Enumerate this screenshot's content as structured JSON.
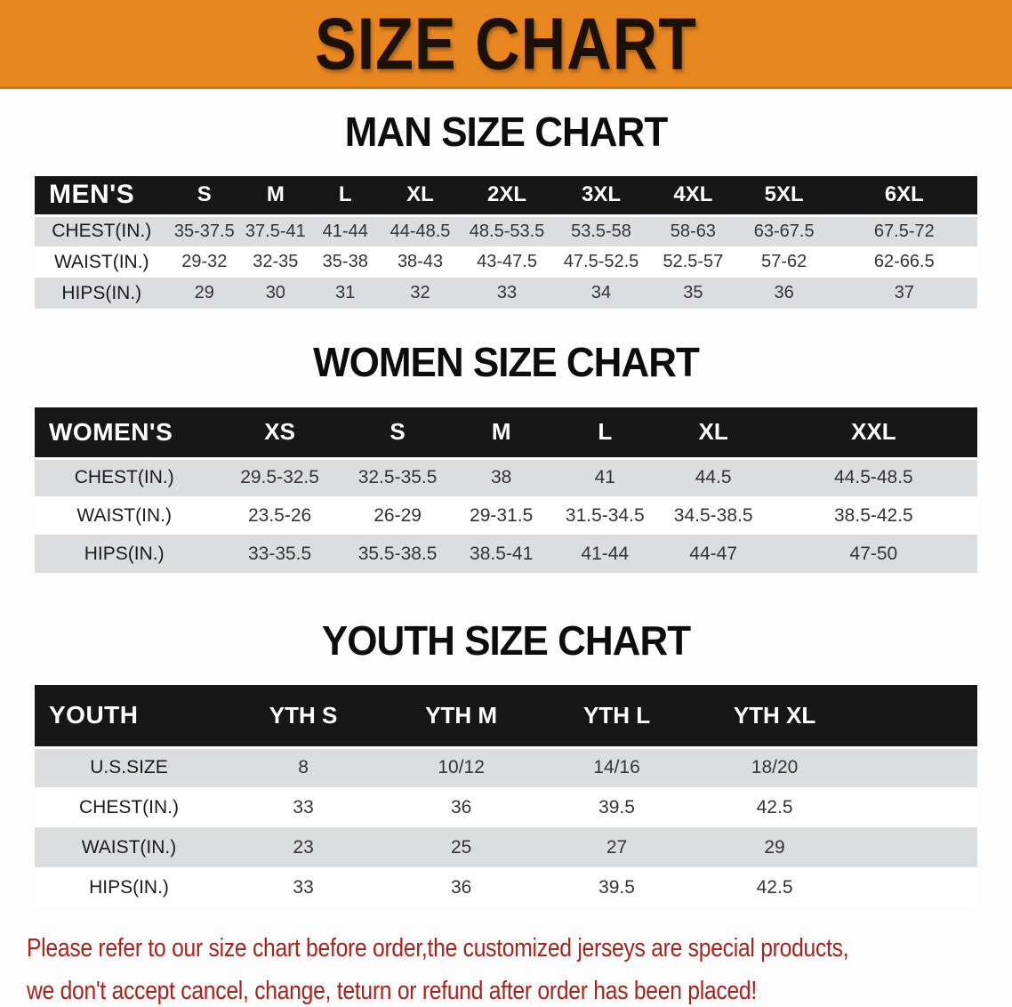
{
  "banner": {
    "title": "SIZE CHART",
    "bg_color": "#e8861f",
    "text_color": "#1c1106"
  },
  "sections": [
    {
      "heading": "MAN SIZE CHART",
      "table": {
        "header": [
          "MEN'S",
          "S",
          "M",
          "L",
          "XL",
          "2XL",
          "3XL",
          "4XL",
          "5XL",
          "6XL"
        ],
        "rows": [
          {
            "label": "CHEST(IN.)",
            "values": [
              "35-37.5",
              "37.5-41",
              "41-44",
              "44-48.5",
              "48.5-53.5",
              "53.5-58",
              "58-63",
              "63-67.5",
              "67.5-72"
            ]
          },
          {
            "label": "WAIST(IN.)",
            "values": [
              "29-32",
              "32-35",
              "35-38",
              "38-43",
              "43-47.5",
              "47.5-52.5",
              "52.5-57",
              "57-62",
              "62-66.5"
            ]
          },
          {
            "label": "HIPS(IN.)",
            "values": [
              "29",
              "30",
              "31",
              "32",
              "33",
              "34",
              "35",
              "36",
              "37"
            ]
          }
        ]
      }
    },
    {
      "heading": "WOMEN SIZE CHART",
      "table": {
        "header": [
          "WOMEN'S",
          "XS",
          "S",
          "M",
          "L",
          "XL",
          "XXL"
        ],
        "rows": [
          {
            "label": "CHEST(IN.)",
            "values": [
              "29.5-32.5",
              "32.5-35.5",
              "38",
              "41",
              "44.5",
              "44.5-48.5"
            ]
          },
          {
            "label": "WAIST(IN.)",
            "values": [
              "23.5-26",
              "26-29",
              "29-31.5",
              "31.5-34.5",
              "34.5-38.5",
              "38.5-42.5"
            ]
          },
          {
            "label": "HIPS(IN.)",
            "values": [
              "33-35.5",
              "35.5-38.5",
              "38.5-41",
              "41-44",
              "44-47",
              "47-50"
            ]
          }
        ]
      }
    },
    {
      "heading": "YOUTH SIZE CHART",
      "table": {
        "header": [
          "YOUTH",
          "YTH S",
          "YTH M",
          "YTH L",
          "YTH XL"
        ],
        "rows": [
          {
            "label": "U.S.SIZE",
            "values": [
              "8",
              "10/12",
              "14/16",
              "18/20"
            ]
          },
          {
            "label": "CHEST(IN.)",
            "values": [
              "33",
              "36",
              "39.5",
              "42.5"
            ]
          },
          {
            "label": "WAIST(IN.)",
            "values": [
              "23",
              "25",
              "27",
              "29"
            ]
          },
          {
            "label": "HIPS(IN.)",
            "values": [
              "33",
              "36",
              "39.5",
              "42.5"
            ]
          }
        ]
      }
    }
  ],
  "footnote": {
    "line1": "Please refer to our size chart before order,the customized jerseys are special products,",
    "line2": "we don't accept cancel, change, teturn or refund after order has been placed!",
    "color": "#ab211c"
  }
}
